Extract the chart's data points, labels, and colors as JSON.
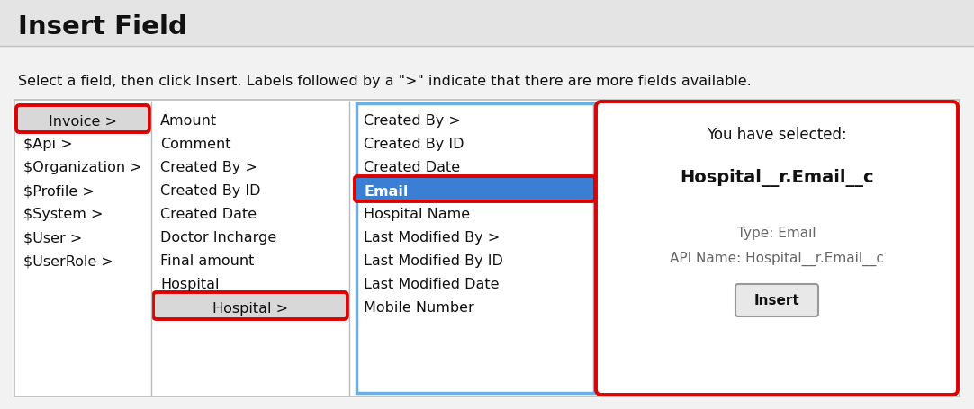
{
  "title": "Insert Field",
  "subtitle": "Select a field, then click Insert. Labels followed by a \">\" indicate that there are more fields available.",
  "bg_color": "#f2f2f2",
  "panel_bg": "#ffffff",
  "title_bg": "#e4e4e4",
  "col1_items": [
    "Invoice >",
    "$Api >",
    "$Organization >",
    "$Profile >",
    "$System >",
    "$User >",
    "$UserRole >"
  ],
  "col2_items": [
    "Amount",
    "Comment",
    "Created By >",
    "Created By ID",
    "Created Date",
    "Doctor Incharge",
    "Final amount",
    "Hospital",
    "Hospital >"
  ],
  "col3_items": [
    "Created By >",
    "Created By ID",
    "Created Date",
    "Email",
    "Hospital Name",
    "Last Modified By >",
    "Last Modified By ID",
    "Last Modified Date",
    "Mobile Number"
  ],
  "selected_field": "Hospital__r.Email__c",
  "selected_type": "Type: Email",
  "selected_api": "API Name: Hospital__r.Email__c",
  "highlighted_col3_index": 3,
  "circled_col1_index": 0,
  "circled_col2_index": 8,
  "col3_border_color": "#6ab0e0",
  "red_color": "#dd0000",
  "blue_highlight": "#3a7fd4",
  "white": "#ffffff",
  "black": "#111111",
  "gray_item_bg": "#d8d8d8",
  "panel_border": "#bbbbbb",
  "insert_btn_text": "Insert",
  "you_have_selected": "You have selected:",
  "type_color": "#666666",
  "api_color": "#666666"
}
